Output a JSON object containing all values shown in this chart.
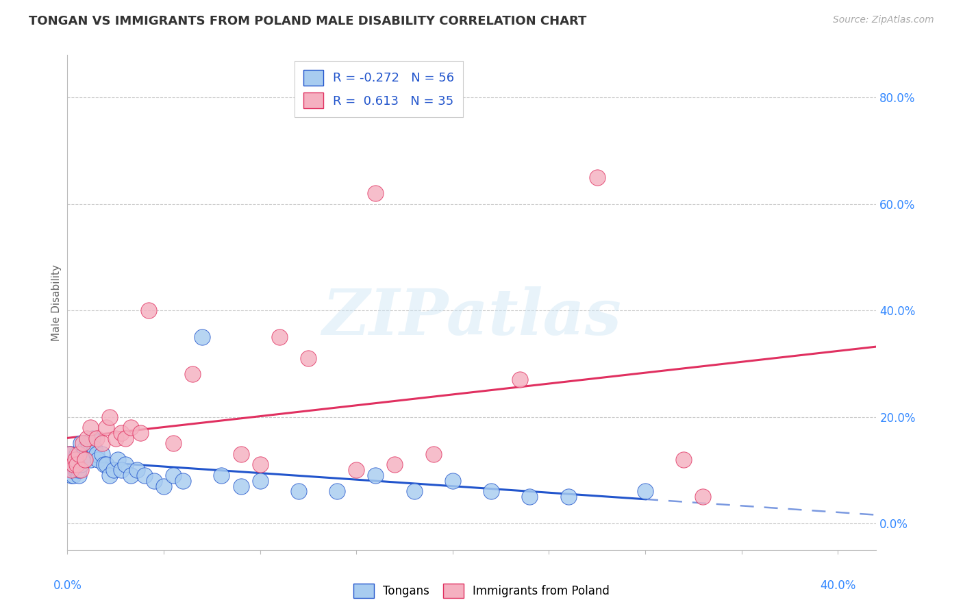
{
  "title": "TONGAN VS IMMIGRANTS FROM POLAND MALE DISABILITY CORRELATION CHART",
  "source": "Source: ZipAtlas.com",
  "ylabel": "Male Disability",
  "R_tongan": -0.272,
  "N_tongan": 56,
  "R_poland": 0.613,
  "N_poland": 35,
  "tongan_color": "#a8ccf0",
  "poland_color": "#f5b0c0",
  "tongan_line_color": "#2255cc",
  "poland_line_color": "#e03060",
  "xlim": [
    0.0,
    0.42
  ],
  "ylim": [
    -0.05,
    0.88
  ],
  "yticks": [
    0.0,
    0.2,
    0.4,
    0.6,
    0.8
  ],
  "tongan_x": [
    0.001,
    0.001,
    0.002,
    0.002,
    0.002,
    0.003,
    0.003,
    0.003,
    0.004,
    0.004,
    0.005,
    0.005,
    0.005,
    0.006,
    0.006,
    0.006,
    0.007,
    0.007,
    0.008,
    0.009,
    0.009,
    0.01,
    0.011,
    0.012,
    0.013,
    0.014,
    0.015,
    0.016,
    0.018,
    0.019,
    0.02,
    0.022,
    0.024,
    0.026,
    0.028,
    0.03,
    0.033,
    0.036,
    0.04,
    0.045,
    0.05,
    0.055,
    0.06,
    0.07,
    0.08,
    0.09,
    0.1,
    0.12,
    0.14,
    0.16,
    0.18,
    0.2,
    0.22,
    0.24,
    0.26,
    0.3
  ],
  "tongan_y": [
    0.13,
    0.11,
    0.09,
    0.11,
    0.13,
    0.1,
    0.09,
    0.11,
    0.1,
    0.11,
    0.12,
    0.1,
    0.13,
    0.09,
    0.11,
    0.1,
    0.11,
    0.15,
    0.13,
    0.12,
    0.14,
    0.13,
    0.15,
    0.12,
    0.16,
    0.14,
    0.13,
    0.12,
    0.13,
    0.11,
    0.11,
    0.09,
    0.1,
    0.12,
    0.1,
    0.11,
    0.09,
    0.1,
    0.09,
    0.08,
    0.07,
    0.09,
    0.08,
    0.35,
    0.09,
    0.07,
    0.08,
    0.06,
    0.06,
    0.09,
    0.06,
    0.08,
    0.06,
    0.05,
    0.05,
    0.06
  ],
  "poland_x": [
    0.001,
    0.002,
    0.003,
    0.004,
    0.005,
    0.006,
    0.007,
    0.008,
    0.009,
    0.01,
    0.012,
    0.015,
    0.018,
    0.02,
    0.022,
    0.025,
    0.028,
    0.03,
    0.033,
    0.038,
    0.042,
    0.055,
    0.065,
    0.09,
    0.1,
    0.11,
    0.125,
    0.15,
    0.16,
    0.17,
    0.19,
    0.235,
    0.275,
    0.32,
    0.33
  ],
  "poland_y": [
    0.13,
    0.1,
    0.11,
    0.12,
    0.11,
    0.13,
    0.1,
    0.15,
    0.12,
    0.16,
    0.18,
    0.16,
    0.15,
    0.18,
    0.2,
    0.16,
    0.17,
    0.16,
    0.18,
    0.17,
    0.4,
    0.15,
    0.28,
    0.13,
    0.11,
    0.35,
    0.31,
    0.1,
    0.62,
    0.11,
    0.13,
    0.27,
    0.65,
    0.12,
    0.05
  ]
}
